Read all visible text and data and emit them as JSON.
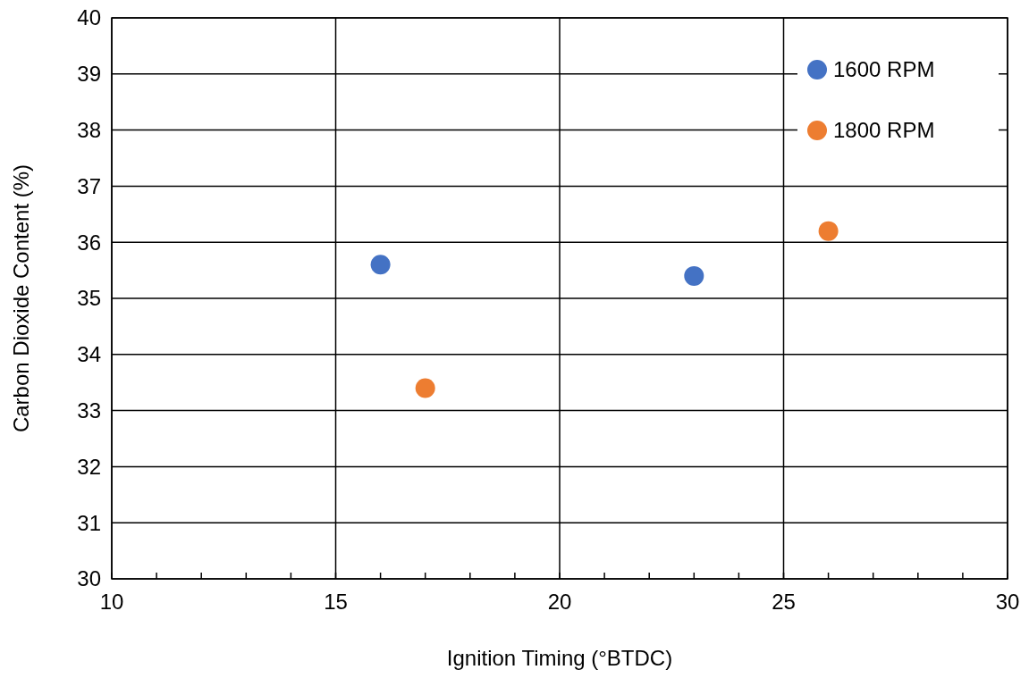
{
  "chart_data": {
    "type": "scatter",
    "xlabel": "Ignition Timing (°BTDC)",
    "ylabel": "Carbon Dioxide Content (%)",
    "series": [
      {
        "name": "1600 RPM",
        "color": "#4472c4",
        "x": [
          16,
          23
        ],
        "values": [
          35.6,
          35.4
        ]
      },
      {
        "name": "1800 RPM",
        "color": "#ed7d31",
        "x": [
          17,
          26
        ],
        "values": [
          33.4,
          36.2
        ]
      }
    ],
    "xlim": [
      10,
      30
    ],
    "xticks": [
      10,
      {
        "value": 11,
        "label": null
      },
      {
        "value": 12,
        "label": null
      },
      {
        "value": 13,
        "label": null
      },
      {
        "value": 14,
        "label": null
      },
      15,
      {
        "value": 16,
        "label": null
      },
      {
        "value": 17,
        "label": null
      },
      {
        "value": 18,
        "label": null
      },
      {
        "value": 19,
        "label": null
      },
      20,
      {
        "value": 21,
        "label": null
      },
      {
        "value": 22,
        "label": null
      },
      {
        "value": 23,
        "label": null
      },
      {
        "value": 24,
        "label": null
      },
      25,
      {
        "value": 26,
        "label": null
      },
      {
        "value": 27,
        "label": null
      },
      {
        "value": 28,
        "label": null
      },
      {
        "value": 29,
        "label": null
      },
      30
    ],
    "ylim": [
      30,
      40
    ],
    "yticks": [
      30,
      31,
      32,
      33,
      34,
      35,
      36,
      37,
      38,
      39,
      40
    ],
    "grid": true,
    "legend": "top right",
    "marker": "circle"
  }
}
